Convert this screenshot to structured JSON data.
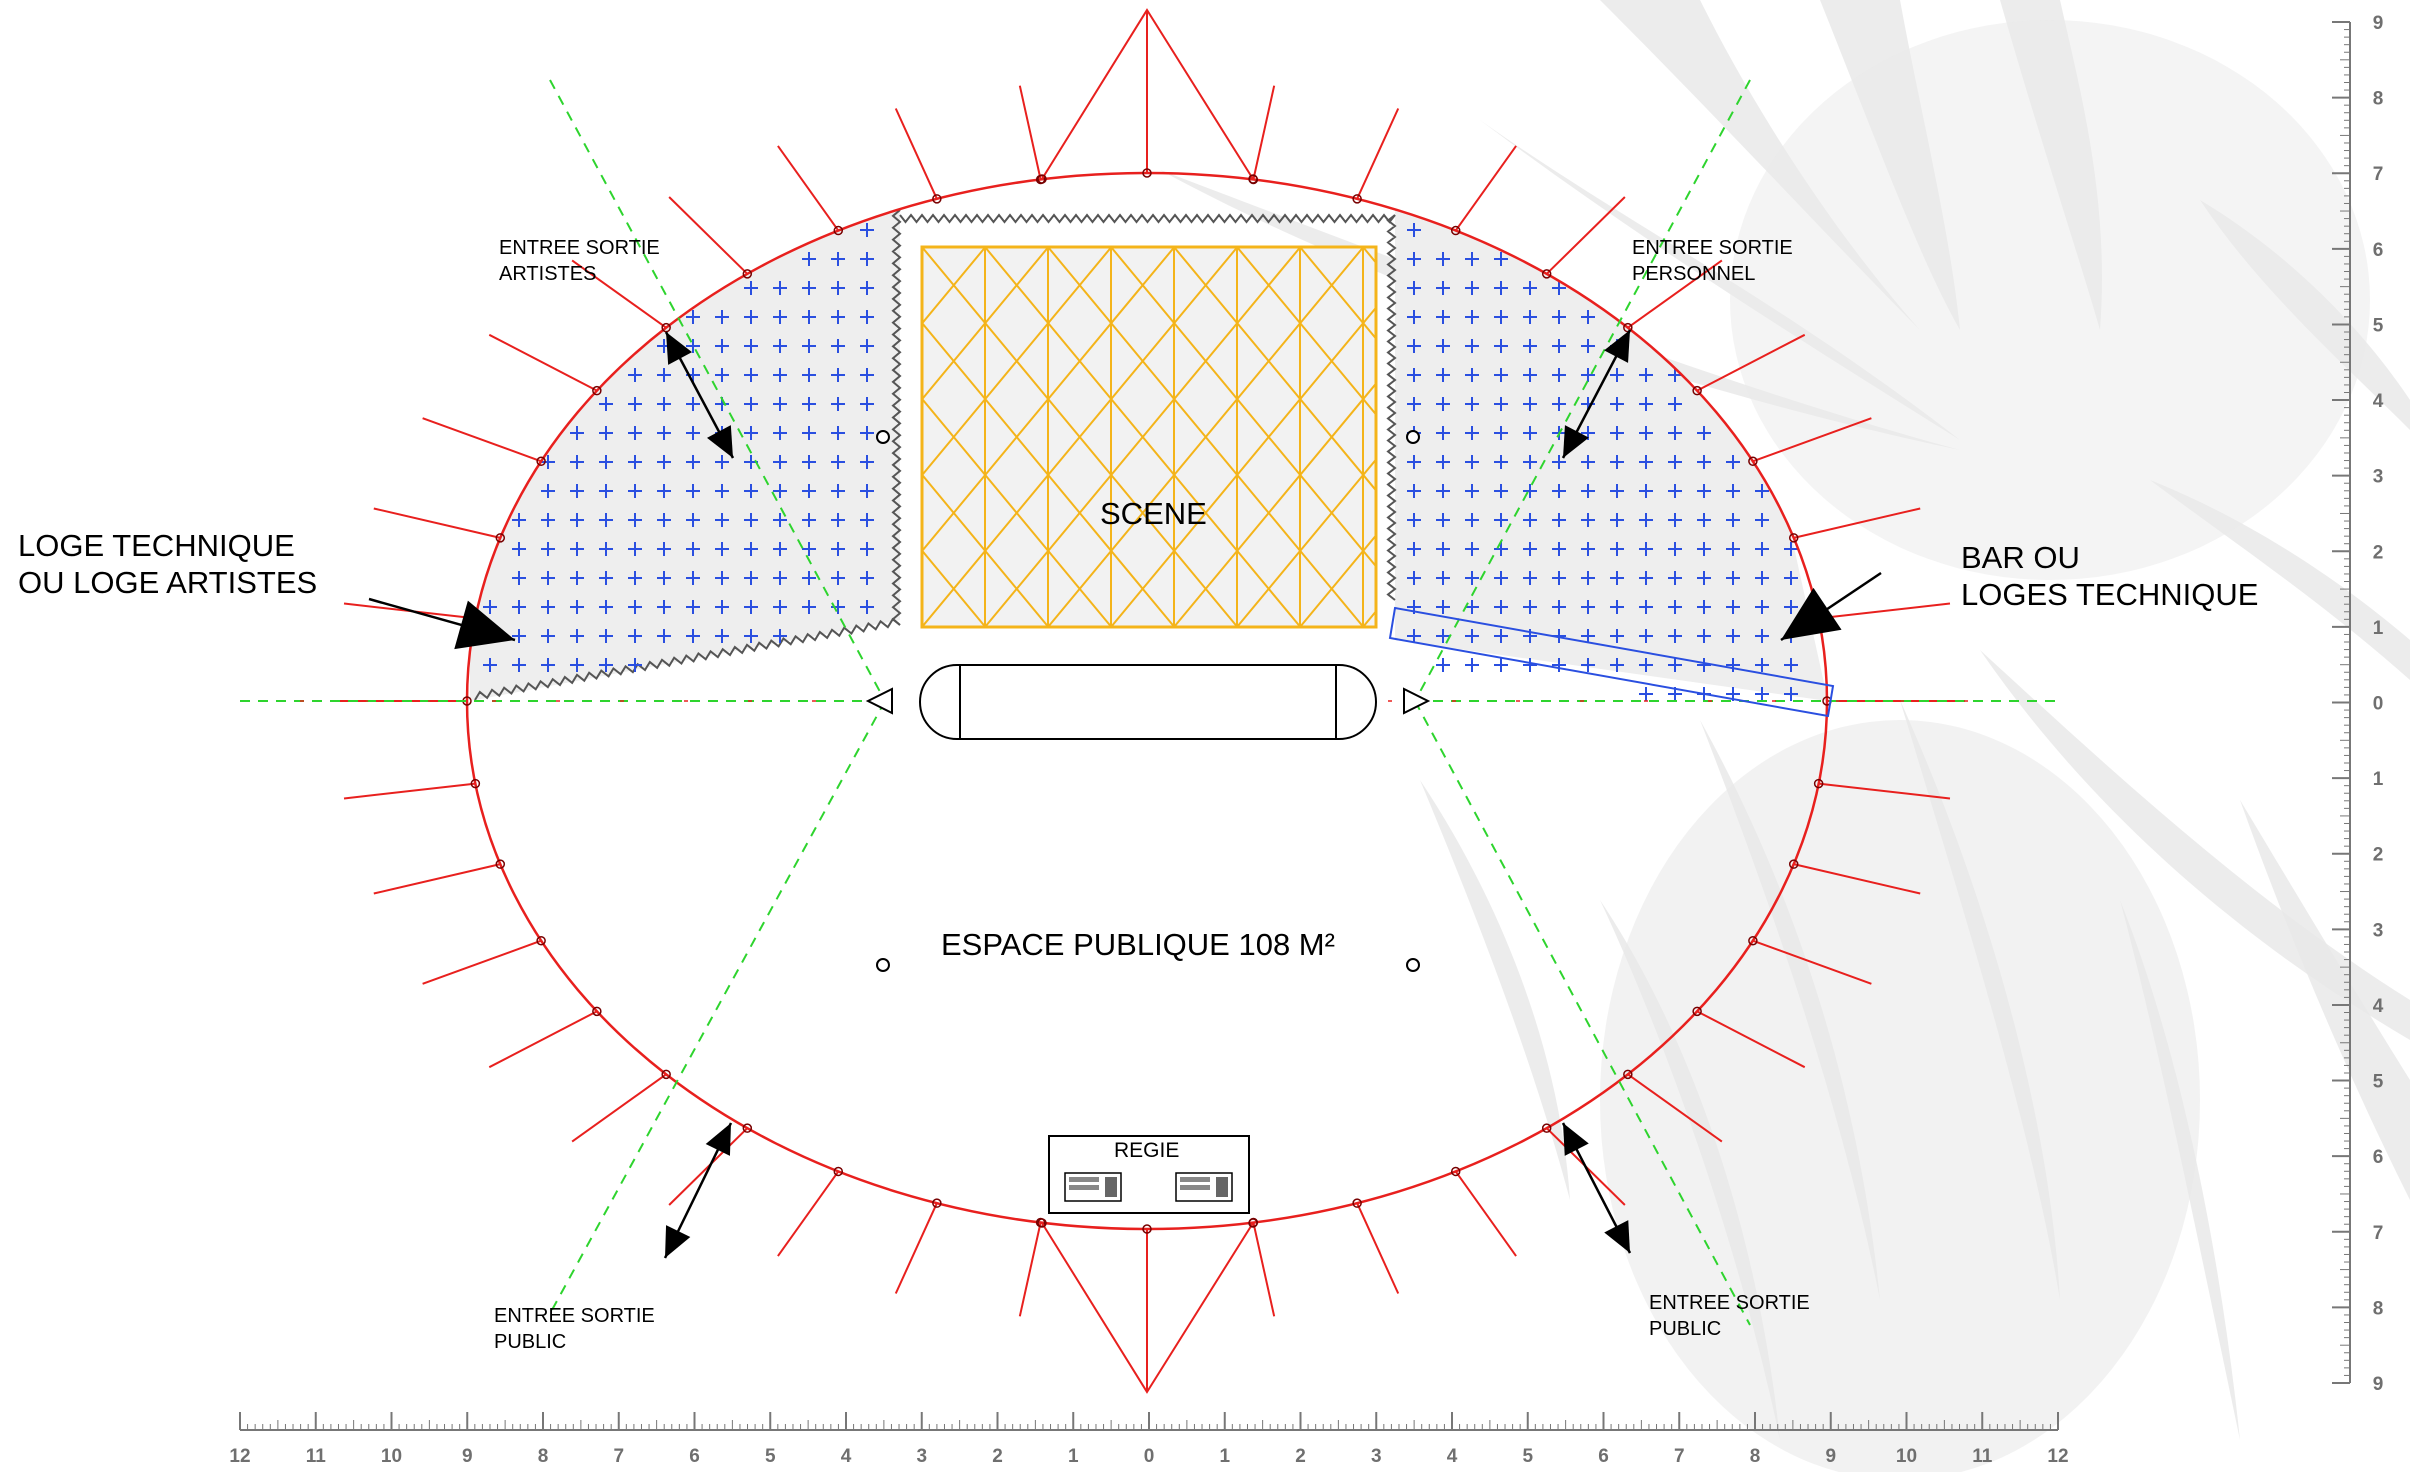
{
  "colors": {
    "tent_outline": "#e8201e",
    "stage": "#f4b41a",
    "zone_cross": "#2a4fe0",
    "zone_fill": "#eeeeee",
    "axis_dash": "#2ed42e",
    "bar_rect": "#2a4fe0",
    "ruler": "#777777",
    "watermark": "#e9e9e9"
  },
  "labels": {
    "scene": "SCENE",
    "public_space": "ESPACE PUBLIQUE 108 M²",
    "regie": "REGIE",
    "loge_left_line1": "LOGE TECHNIQUE",
    "loge_left_line2": "OU LOGE ARTISTES",
    "bar_right_line1": "BAR OU",
    "bar_right_line2": "LOGES TECHNIQUE",
    "entree_artistes_line1": "ENTREE SORTIE",
    "entree_artistes_line2": "ARTISTES",
    "entree_personnel_line1": "ENTREE SORTIE",
    "entree_personnel_line2": "PERSONNEL",
    "entree_public_left_line1": "ENTREE SORTIE",
    "entree_public_left_line2": "PUBLIC",
    "entree_public_right_line1": "ENTREE SORTIE",
    "entree_public_right_line2": "PUBLIC"
  },
  "ruler_bottom_ticks": [
    "12",
    "11",
    "10",
    "9",
    "8",
    "7",
    "6",
    "5",
    "4",
    "3",
    "2",
    "1",
    "0",
    "1",
    "2",
    "3",
    "4",
    "5",
    "6",
    "7",
    "8",
    "9",
    "10",
    "11",
    "12"
  ],
  "ruler_right_ticks": [
    "9",
    "8",
    "7",
    "6",
    "5",
    "4",
    "3",
    "2",
    "1",
    "0",
    "1",
    "2",
    "3",
    "4",
    "5",
    "6",
    "7",
    "8",
    "9"
  ]
}
